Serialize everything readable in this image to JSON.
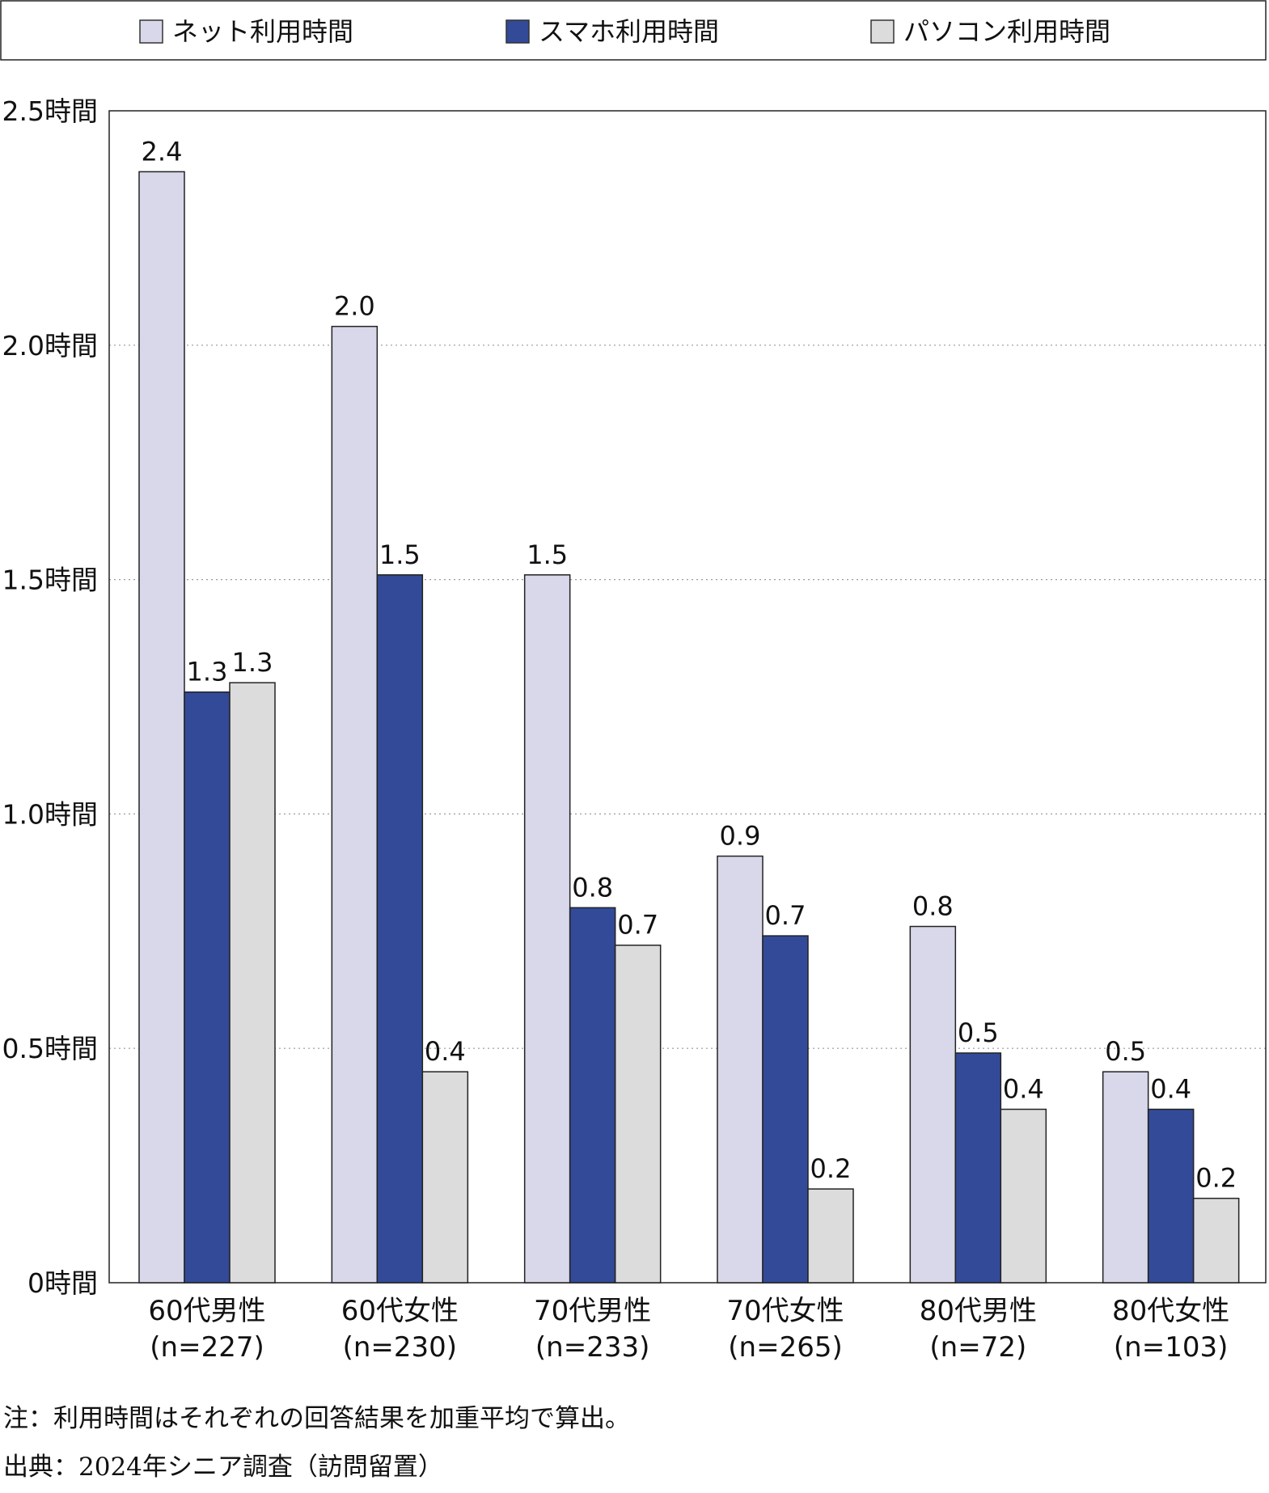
{
  "chart_data": {
    "type": "bar",
    "categories": [
      {
        "name": "60代男性",
        "n": "(n=227)"
      },
      {
        "name": "60代女性",
        "n": "(n=230)"
      },
      {
        "name": "70代男性",
        "n": "(n=233)"
      },
      {
        "name": "70代女性",
        "n": "(n=265)"
      },
      {
        "name": "80代男性",
        "n": "(n=72)"
      },
      {
        "name": "80代女性",
        "n": "(n=103)"
      }
    ],
    "series": [
      {
        "name": "ネット利用時間",
        "color": "#d8d8ea",
        "values": [
          2.37,
          2.04,
          1.51,
          0.91,
          0.76,
          0.45
        ],
        "labels": [
          "2.4",
          "2.0",
          "1.5",
          "0.9",
          "0.8",
          "0.5"
        ]
      },
      {
        "name": "スマホ利用時間",
        "color": "#334a98",
        "values": [
          1.26,
          1.51,
          0.8,
          0.74,
          0.49,
          0.37
        ],
        "labels": [
          "1.3",
          "1.5",
          "0.8",
          "0.7",
          "0.5",
          "0.4"
        ]
      },
      {
        "name": "パソコン利用時間",
        "color": "#dcdcdc",
        "values": [
          1.28,
          0.45,
          0.72,
          0.2,
          0.37,
          0.18
        ],
        "labels": [
          "1.3",
          "0.4",
          "0.7",
          "0.2",
          "0.4",
          "0.2"
        ]
      }
    ],
    "yticks": [
      {
        "value": 0,
        "label": "0時間"
      },
      {
        "value": 0.5,
        "label": "0.5時間"
      },
      {
        "value": 1.0,
        "label": "1.0時間"
      },
      {
        "value": 1.5,
        "label": "1.5時間"
      },
      {
        "value": 2.0,
        "label": "2.0時間"
      },
      {
        "value": 2.5,
        "label": "2.5時間"
      }
    ],
    "ylim": [
      0,
      2.5
    ],
    "grid": true,
    "legend_position": "top"
  },
  "notes": {
    "note": "注：利用時間はそれぞれの回答結果を加重平均で算出。",
    "source": "出典：2024年シニア調査（訪問留置）"
  }
}
